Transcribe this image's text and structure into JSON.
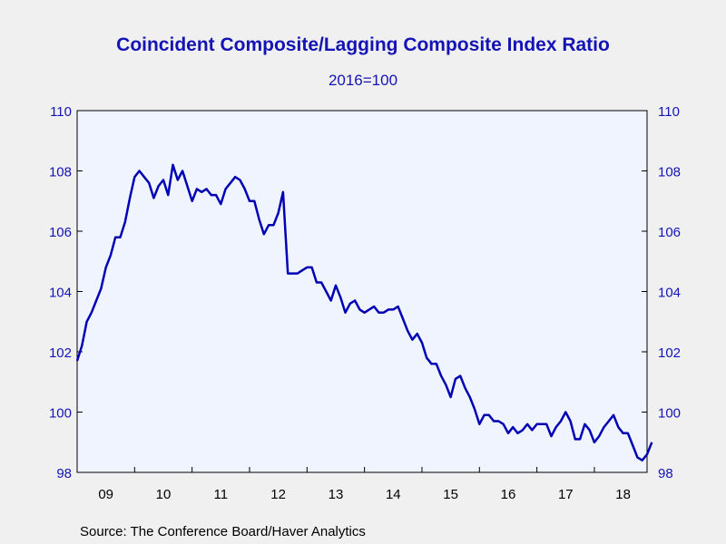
{
  "colors": {
    "text": "#1414b4",
    "line": "#0000b4",
    "plot_background": "#f0f4ff",
    "page_background": "#f0f0f0"
  },
  "footer": {
    "source": "Source:  The Conference Board/Haver Analytics"
  },
  "chart_data": {
    "type": "line",
    "title": "Coincident Composite/Lagging Composite Index Ratio",
    "subtitle": "2016=100",
    "xlabel": "",
    "ylabel": "",
    "ylim": [
      98,
      110
    ],
    "xlim": [
      2009.0,
      2018.9167
    ],
    "y_ticks": [
      98,
      100,
      102,
      104,
      106,
      108,
      110
    ],
    "x_tick_labels": [
      "09",
      "10",
      "11",
      "12",
      "13",
      "14",
      "15",
      "16",
      "17",
      "18"
    ],
    "x_tick_years": [
      2009,
      2010,
      2011,
      2012,
      2013,
      2014,
      2015,
      2016,
      2017,
      2018
    ],
    "grid": false,
    "legend": "none",
    "right_axis": true,
    "series": [
      {
        "frequency": "monthly",
        "start": "2009-01",
        "values": [
          101.7,
          102.2,
          103.0,
          103.3,
          103.7,
          104.1,
          104.8,
          105.2,
          105.8,
          105.8,
          106.3,
          107.1,
          107.8,
          108.0,
          107.8,
          107.6,
          107.1,
          107.5,
          107.7,
          107.2,
          108.2,
          107.7,
          108.0,
          107.5,
          107.0,
          107.4,
          107.3,
          107.4,
          107.2,
          107.2,
          106.9,
          107.4,
          107.6,
          107.8,
          107.7,
          107.4,
          107.0,
          107.0,
          106.4,
          105.9,
          106.2,
          106.2,
          106.6,
          107.3,
          104.6,
          104.6,
          104.6,
          104.7,
          104.8,
          104.8,
          104.3,
          104.3,
          104.0,
          103.7,
          104.2,
          103.8,
          103.3,
          103.6,
          103.7,
          103.4,
          103.3,
          103.4,
          103.5,
          103.3,
          103.3,
          103.4,
          103.4,
          103.5,
          103.1,
          102.7,
          102.4,
          102.6,
          102.3,
          101.8,
          101.6,
          101.6,
          101.2,
          100.9,
          100.5,
          101.1,
          101.2,
          100.8,
          100.5,
          100.1,
          99.6,
          99.9,
          99.9,
          99.7,
          99.7,
          99.6,
          99.3,
          99.5,
          99.3,
          99.4,
          99.6,
          99.4,
          99.6,
          99.6,
          99.6,
          99.2,
          99.5,
          99.7,
          100.0,
          99.7,
          99.1,
          99.1,
          99.6,
          99.4,
          99.0,
          99.2,
          99.5,
          99.7,
          99.9,
          99.5,
          99.3,
          99.3,
          98.9,
          98.5,
          98.4,
          98.6,
          99.0
        ]
      }
    ]
  }
}
